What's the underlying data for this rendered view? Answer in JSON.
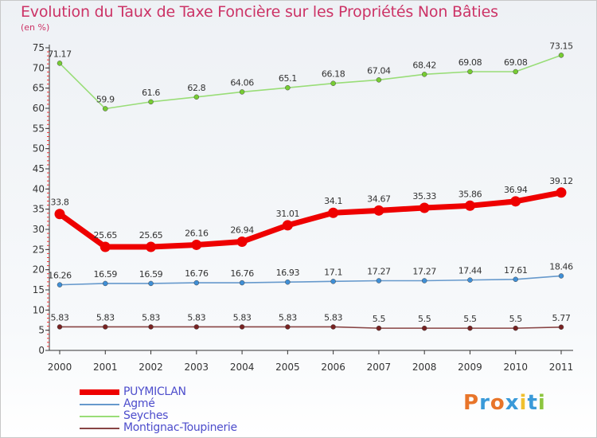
{
  "title": "Evolution du Taux de Taxe Foncière sur les Propriétés Non Bâties",
  "unit_label": "(en %)",
  "logo": {
    "text": "Proxiti",
    "colors": [
      "#e8752a",
      "#3a9ad9",
      "#e8752a",
      "#3a9ad9",
      "#f0c030",
      "#3a9ad9",
      "#8dc63f"
    ]
  },
  "chart_data": {
    "type": "line",
    "title": "Evolution du Taux de Taxe Foncière sur les Propriétés Non Bâties",
    "ylabel": "(en %)",
    "xlabel": "",
    "ylim": [
      0,
      75
    ],
    "y_ticks": [
      "0",
      "5",
      "10",
      "15",
      "20",
      "25",
      "30",
      "35",
      "40",
      "45",
      "50",
      "55",
      "60",
      "65",
      "70",
      "75"
    ],
    "x": [
      "2000",
      "2001",
      "2002",
      "2003",
      "2004",
      "2005",
      "2006",
      "2007",
      "2008",
      "2009",
      "2010",
      "2011"
    ],
    "grid": false,
    "legend": "bottom-left",
    "series": [
      {
        "name": "PUYMICLAN",
        "color": "#ee0000",
        "marker_color": "#ee0000",
        "emphasis": true,
        "values": [
          33.8,
          25.65,
          25.65,
          26.16,
          26.94,
          31.01,
          34.1,
          34.67,
          35.33,
          35.86,
          36.94,
          39.12
        ],
        "labels": [
          "33.8",
          "25.65",
          "25.65",
          "26.16",
          "26.94",
          "31.01",
          "34.1",
          "34.67",
          "35.33",
          "35.86",
          "36.94",
          "39.12"
        ]
      },
      {
        "name": "Agmé",
        "color": "#6699cc",
        "marker_color": "#3f8fd6",
        "emphasis": false,
        "values": [
          16.26,
          16.59,
          16.59,
          16.76,
          16.76,
          16.93,
          17.1,
          17.27,
          17.27,
          17.44,
          17.61,
          18.46
        ],
        "labels": [
          "16.26",
          "16.59",
          "16.59",
          "16.76",
          "16.76",
          "16.93",
          "17.1",
          "17.27",
          "17.27",
          "17.44",
          "17.61",
          "18.46"
        ]
      },
      {
        "name": "Seyches",
        "color": "#99dd77",
        "marker_color": "#77cc33",
        "emphasis": false,
        "values": [
          71.17,
          59.9,
          61.6,
          62.8,
          64.06,
          65.1,
          66.18,
          67.04,
          68.42,
          69.08,
          69.08,
          73.15
        ],
        "labels": [
          "71.17",
          "59.9",
          "61.6",
          "62.8",
          "64.06",
          "65.1",
          "66.18",
          "67.04",
          "68.42",
          "69.08",
          "69.08",
          "73.15"
        ]
      },
      {
        "name": "Montignac-Toupinerie",
        "color": "#884444",
        "marker_color": "#772222",
        "emphasis": false,
        "values": [
          5.83,
          5.83,
          5.83,
          5.83,
          5.83,
          5.83,
          5.83,
          5.5,
          5.5,
          5.5,
          5.5,
          5.77
        ],
        "labels": [
          "5.83",
          "5.83",
          "5.83",
          "5.83",
          "5.83",
          "5.83",
          "5.83",
          "5.5",
          "5.5",
          "5.5",
          "5.5",
          "5.77"
        ]
      }
    ]
  }
}
